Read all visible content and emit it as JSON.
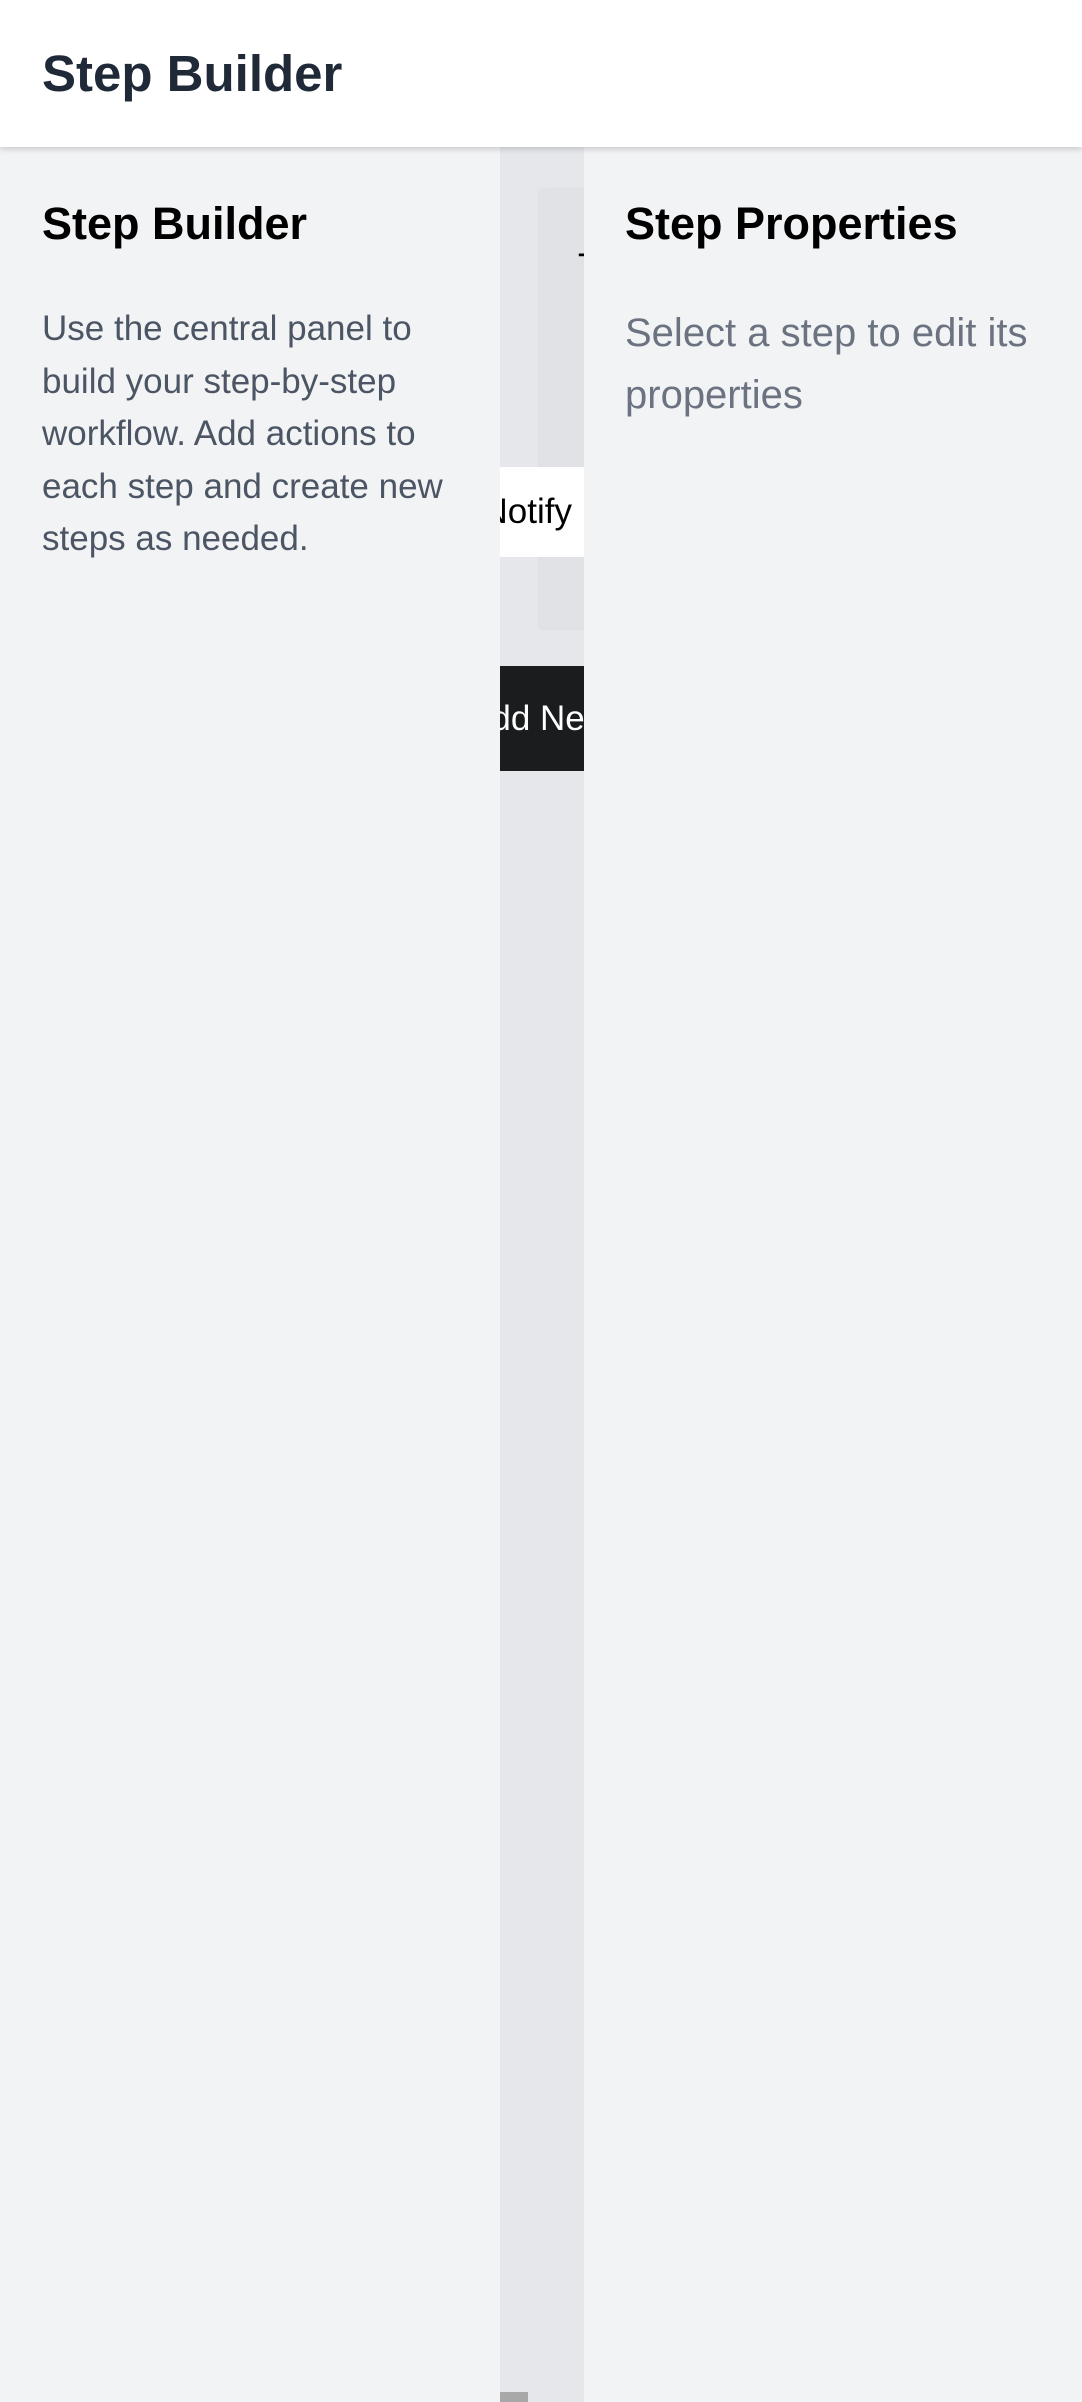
{
  "header": {
    "title": "Step Builder"
  },
  "left_panel": {
    "heading": "Step Builder",
    "description": "Use the central panel to build your step-by-step workflow. Add actions to each step and create new steps as needed."
  },
  "center_panel": {
    "step_card_title_fragment": "T",
    "action_chip_label": "Notify",
    "add_next_button_label": "Add Next"
  },
  "right_panel": {
    "heading": "Step Properties",
    "hint": "Select a step to edit its properties"
  },
  "colors": {
    "header_bg": "#ffffff",
    "panel_bg": "#f2f3f5",
    "center_bg": "#e5e7eb",
    "button_bg": "#1b1c1e",
    "title_text": "#1f2937",
    "muted_text": "#6b7280"
  }
}
